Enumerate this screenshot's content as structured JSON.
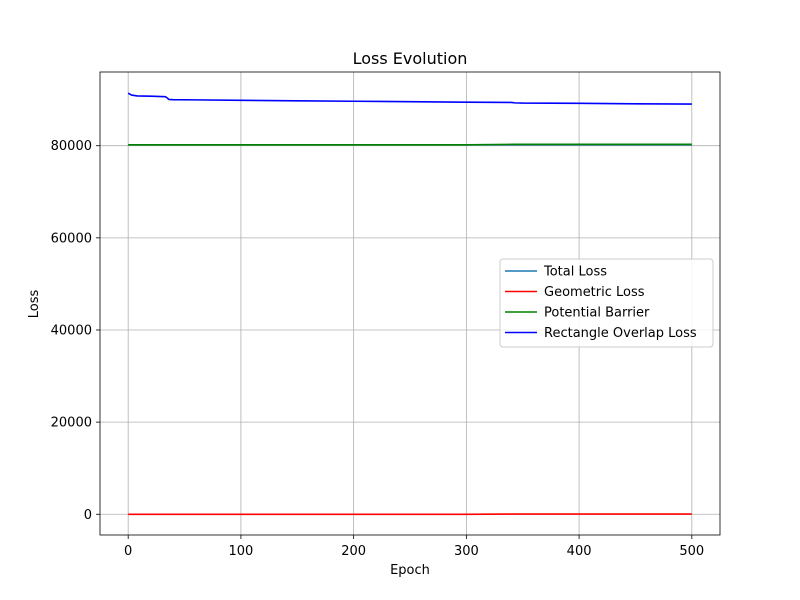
{
  "chart_data": {
    "type": "line",
    "title": "Loss Evolution",
    "xlabel": "Epoch",
    "ylabel": "Loss",
    "xlim": [
      -25,
      525
    ],
    "ylim": [
      -4500,
      96000
    ],
    "xticks": [
      0,
      100,
      200,
      300,
      400,
      500
    ],
    "yticks": [
      0,
      20000,
      40000,
      60000,
      80000
    ],
    "grid": true,
    "legend_position": "center-right",
    "series": [
      {
        "name": "Total Loss",
        "color": "#1f77b4",
        "x": [
          0,
          500
        ],
        "y": [
          80200,
          80200
        ]
      },
      {
        "name": "Geometric Loss",
        "color": "#ff0000",
        "x": [
          0,
          100,
          200,
          300,
          342,
          400,
          500
        ],
        "y": [
          0,
          0,
          0,
          0,
          50,
          50,
          50
        ]
      },
      {
        "name": "Potential Barrier",
        "color": "#008000",
        "x": [
          0,
          100,
          200,
          300,
          342,
          400,
          500
        ],
        "y": [
          80200,
          80200,
          80200,
          80200,
          80300,
          80300,
          80300
        ]
      },
      {
        "name": "Rectangle Overlap Loss",
        "color": "#0000ff",
        "x": [
          0,
          3,
          8,
          20,
          33,
          35,
          36,
          40,
          60,
          100,
          150,
          200,
          250,
          300,
          340,
          343,
          350,
          400,
          450,
          500
        ],
        "y": [
          91400,
          91000,
          90800,
          90750,
          90650,
          90300,
          90050,
          90000,
          89950,
          89850,
          89750,
          89650,
          89550,
          89450,
          89400,
          89300,
          89250,
          89200,
          89100,
          89050
        ]
      }
    ]
  }
}
